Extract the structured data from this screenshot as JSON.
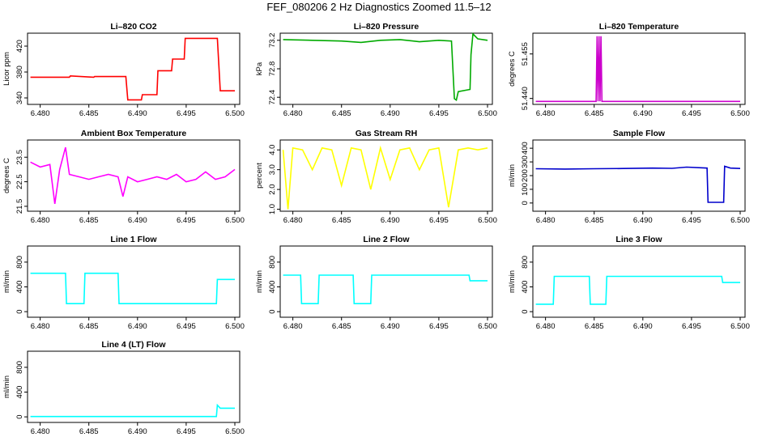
{
  "figure": {
    "title": "FEF_080206  2 Hz Diagnostics Zoomed 11.5–12"
  },
  "chart_data": [
    {
      "type": "line",
      "title": "Li–820 CO2",
      "ylabel": "Licor ppm",
      "color": "#ff0000",
      "xlim": [
        6.4787,
        6.5005
      ],
      "ylim": [
        330,
        440
      ],
      "xticks": [
        "6.480",
        "6.485",
        "6.490",
        "6.495",
        "6.500"
      ],
      "yticks": [
        "340",
        "380",
        "420"
      ],
      "x": [
        6.479,
        6.483,
        6.4831,
        6.4855,
        6.4856,
        6.4888,
        6.489,
        6.4904,
        6.4905,
        6.492,
        6.4921,
        6.4935,
        6.4936,
        6.4948,
        6.4949,
        6.4982,
        6.4985,
        6.5
      ],
      "y": [
        372,
        372,
        374,
        372,
        373,
        373,
        337,
        337,
        345,
        345,
        382,
        382,
        400,
        400,
        432,
        432,
        351,
        351
      ]
    },
    {
      "type": "line",
      "title": "Li–820 Pressure",
      "ylabel": "kPa",
      "color": "#00aa00",
      "xlim": [
        6.4787,
        6.5005
      ],
      "ylim": [
        72.3,
        73.3
      ],
      "xticks": [
        "6.480",
        "6.485",
        "6.490",
        "6.495",
        "6.500"
      ],
      "yticks": [
        "72.4",
        "72.8",
        "73.2"
      ],
      "x": [
        6.479,
        6.482,
        6.485,
        6.487,
        6.489,
        6.491,
        6.493,
        6.495,
        6.4963,
        6.4966,
        6.4968,
        6.497,
        6.4982,
        6.4983,
        6.4985,
        6.499,
        6.5
      ],
      "y": [
        73.21,
        73.2,
        73.19,
        73.17,
        73.2,
        73.21,
        73.18,
        73.2,
        73.19,
        72.38,
        72.36,
        72.48,
        72.51,
        73.0,
        73.29,
        73.22,
        73.2
      ]
    },
    {
      "type": "line",
      "title": "Li–820 Temperature",
      "ylabel": "degrees C",
      "color": "#cc00cc",
      "xlim": [
        6.4787,
        6.5005
      ],
      "ylim": [
        51.438,
        51.462
      ],
      "xticks": [
        "6.480",
        "6.485",
        "6.490",
        "6.495",
        "6.500"
      ],
      "yticks": [
        "51.440",
        "51.455"
      ],
      "x": [
        6.479,
        6.4852,
        6.4853,
        6.4854,
        6.4855,
        6.4856,
        6.4857,
        6.4858,
        6.5
      ],
      "y": [
        51.439,
        51.439,
        51.461,
        51.439,
        51.461,
        51.439,
        51.461,
        51.439,
        51.439
      ]
    },
    {
      "type": "line",
      "title": "Ambient Box Temperature",
      "ylabel": "degrees C",
      "color": "#ff00ff",
      "xlim": [
        6.4787,
        6.5005
      ],
      "ylim": [
        21.3,
        24.2
      ],
      "xticks": [
        "6.480",
        "6.485",
        "6.490",
        "6.495",
        "6.500"
      ],
      "yticks": [
        "21.5",
        "22.5",
        "23.5"
      ],
      "x": [
        6.479,
        6.48,
        6.481,
        6.4815,
        6.482,
        6.4826,
        6.483,
        6.484,
        6.485,
        6.486,
        6.487,
        6.488,
        6.4885,
        6.489,
        6.49,
        6.491,
        6.492,
        6.493,
        6.494,
        6.495,
        6.496,
        6.497,
        6.498,
        6.499,
        6.5
      ],
      "y": [
        23.3,
        23.1,
        23.2,
        21.6,
        23.0,
        23.9,
        22.8,
        22.7,
        22.6,
        22.7,
        22.8,
        22.7,
        21.9,
        22.7,
        22.5,
        22.6,
        22.7,
        22.6,
        22.8,
        22.5,
        22.6,
        22.9,
        22.6,
        22.7,
        23.0
      ]
    },
    {
      "type": "line",
      "title": "Gas Stream RH",
      "ylabel": "percent",
      "color": "#ffff00",
      "xlim": [
        6.4787,
        6.5005
      ],
      "ylim": [
        0.9,
        4.5
      ],
      "xticks": [
        "6.480",
        "6.485",
        "6.490",
        "6.495",
        "6.500"
      ],
      "yticks": [
        "1.0",
        "2.0",
        "3.0",
        "4.0"
      ],
      "x": [
        6.479,
        6.4795,
        6.48,
        6.481,
        6.482,
        6.483,
        6.484,
        6.485,
        6.486,
        6.487,
        6.488,
        6.489,
        6.49,
        6.491,
        6.492,
        6.493,
        6.494,
        6.495,
        6.496,
        6.497,
        6.498,
        6.499,
        6.5
      ],
      "y": [
        4.0,
        1.0,
        4.1,
        4.0,
        3.0,
        4.1,
        4.0,
        2.2,
        4.1,
        4.0,
        2.0,
        4.1,
        2.5,
        4.0,
        4.1,
        3.0,
        4.0,
        4.1,
        1.1,
        4.0,
        4.1,
        4.0,
        4.1
      ]
    },
    {
      "type": "line",
      "title": "Sample Flow",
      "ylabel": "ml/min",
      "color": "#0000cc",
      "xlim": [
        6.4787,
        6.5005
      ],
      "ylim": [
        -60,
        460
      ],
      "xticks": [
        "6.480",
        "6.485",
        "6.490",
        "6.495",
        "6.500"
      ],
      "yticks": [
        "0",
        "100",
        "200",
        "300",
        "400"
      ],
      "x": [
        6.479,
        6.482,
        6.485,
        6.488,
        6.491,
        6.493,
        6.4945,
        6.4966,
        6.4967,
        6.4983,
        6.4984,
        6.499,
        6.5
      ],
      "y": [
        250,
        248,
        250,
        252,
        255,
        253,
        262,
        255,
        5,
        5,
        268,
        255,
        252
      ]
    },
    {
      "type": "line",
      "title": "Line 1 Flow",
      "ylabel": "ml/min",
      "color": "#00ffff",
      "xlim": [
        6.4787,
        6.5005
      ],
      "ylim": [
        -90,
        1060
      ],
      "xticks": [
        "6.480",
        "6.485",
        "6.490",
        "6.495",
        "6.500"
      ],
      "yticks": [
        "0",
        "400",
        "800"
      ],
      "x": [
        6.479,
        6.4826,
        6.4827,
        6.4845,
        6.4846,
        6.488,
        6.4881,
        6.4981,
        6.4982,
        6.5
      ],
      "y": [
        620,
        620,
        130,
        130,
        620,
        620,
        130,
        130,
        520,
        520
      ]
    },
    {
      "type": "line",
      "title": "Line 2 Flow",
      "ylabel": "ml/min",
      "color": "#00ffff",
      "xlim": [
        6.4787,
        6.5005
      ],
      "ylim": [
        -90,
        1060
      ],
      "xticks": [
        "6.480",
        "6.485",
        "6.490",
        "6.495",
        "6.500"
      ],
      "yticks": [
        "0",
        "400",
        "800"
      ],
      "x": [
        6.479,
        6.4808,
        6.4809,
        6.4826,
        6.4827,
        6.4862,
        6.4863,
        6.488,
        6.4881,
        6.4981,
        6.4982,
        6.5
      ],
      "y": [
        590,
        590,
        130,
        130,
        590,
        590,
        130,
        130,
        590,
        590,
        500,
        500
      ]
    },
    {
      "type": "line",
      "title": "Line 3 Flow",
      "ylabel": "ml/min",
      "color": "#00ffff",
      "xlim": [
        6.4787,
        6.5005
      ],
      "ylim": [
        -90,
        1060
      ],
      "xticks": [
        "6.480",
        "6.485",
        "6.490",
        "6.495",
        "6.500"
      ],
      "yticks": [
        "0",
        "400",
        "800"
      ],
      "x": [
        6.479,
        6.4808,
        6.4809,
        6.4845,
        6.4846,
        6.4862,
        6.4863,
        6.4981,
        6.4982,
        6.5
      ],
      "y": [
        120,
        120,
        570,
        570,
        120,
        120,
        570,
        570,
        470,
        470
      ]
    },
    {
      "type": "line",
      "title": "Line 4 (LT) Flow",
      "ylabel": "ml/min",
      "color": "#00ffff",
      "xlim": [
        6.4787,
        6.5005
      ],
      "ylim": [
        -90,
        1060
      ],
      "xticks": [
        "6.480",
        "6.485",
        "6.490",
        "6.495",
        "6.500"
      ],
      "yticks": [
        "0",
        "400",
        "800"
      ],
      "x": [
        6.479,
        6.4981,
        6.4982,
        6.4985,
        6.5
      ],
      "y": [
        5,
        5,
        190,
        140,
        140
      ]
    }
  ]
}
